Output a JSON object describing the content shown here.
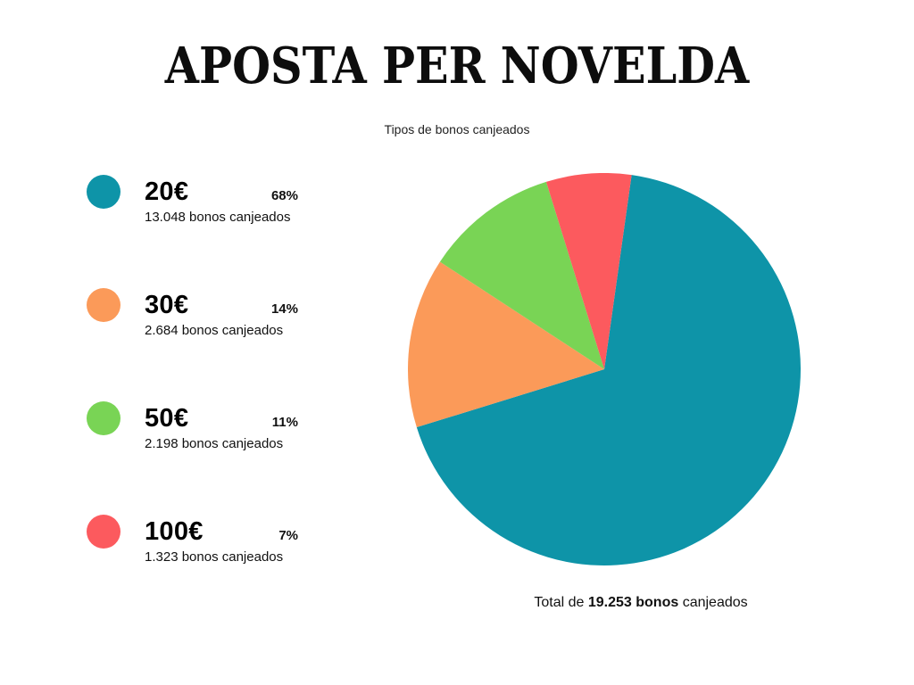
{
  "header": {
    "title": "APOSTA PER NOVELDA",
    "subtitle": "Tipos de bonos canjeados"
  },
  "chart_data": {
    "type": "pie",
    "title": "Tipos de bonos canjeados",
    "legend_position": "left",
    "direction": "clockwise",
    "start_angle_deg": 8,
    "slices": [
      {
        "label": "20€",
        "percent": 68,
        "percent_label": "68%",
        "count": 13048,
        "count_label": "13.048 bonos canjeados",
        "color": "#0e94a8"
      },
      {
        "label": "30€",
        "percent": 14,
        "percent_label": "14%",
        "count": 2684,
        "count_label": "2.684 bonos canjeados",
        "color": "#fb9a59"
      },
      {
        "label": "50€",
        "percent": 11,
        "percent_label": "11%",
        "count": 2198,
        "count_label": "2.198 bonos canjeados",
        "color": "#79d455"
      },
      {
        "label": "100€",
        "percent": 7,
        "percent_label": "7%",
        "count": 1323,
        "count_label": "1.323 bonos canjeados",
        "color": "#fc5a5e"
      }
    ],
    "total": 19253
  },
  "total": {
    "prefix": "Total de",
    "bold": "19.253 bonos",
    "suffix": "canjeados"
  }
}
